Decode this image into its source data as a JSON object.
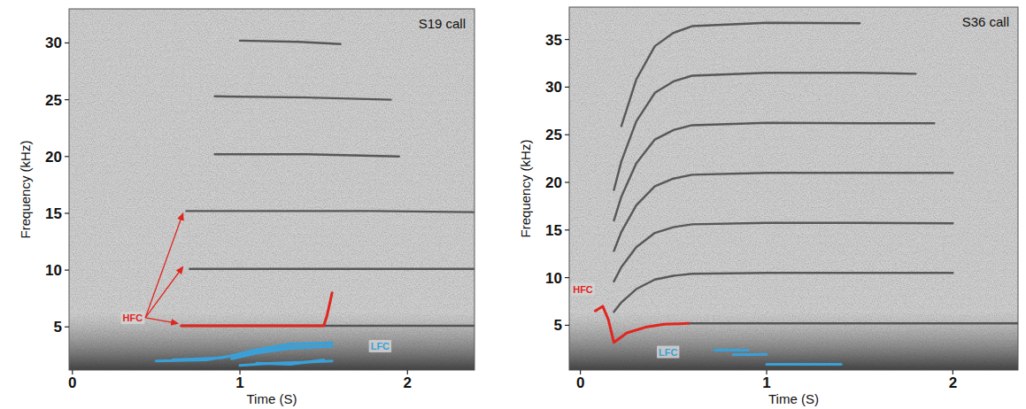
{
  "chart_data": [
    {
      "type": "line",
      "title": "S19 call",
      "x_label": "Time (S)",
      "y_label": "Frequency (kHz)",
      "xlim": [
        -0.02,
        2.4
      ],
      "ylim": [
        1.2,
        33
      ],
      "xticks": [
        0,
        1,
        2
      ],
      "yticks": [
        5,
        10,
        15,
        20,
        25,
        30
      ],
      "grid": false,
      "series": [
        {
          "color": "#3c3c3c",
          "x": [
            0.65,
            1.2,
            1.8,
            2.4
          ],
          "values": [
            5.1,
            5.1,
            5.1,
            5.1
          ]
        },
        {
          "color": "#3c3c3c",
          "x": [
            0.7,
            1.2,
            1.8,
            2.4
          ],
          "values": [
            10.1,
            10.1,
            10.1,
            10.1
          ]
        },
        {
          "color": "#3c3c3c",
          "x": [
            0.68,
            1.2,
            1.8,
            2.4
          ],
          "values": [
            15.2,
            15.2,
            15.2,
            15.1
          ]
        },
        {
          "color": "#3c3c3c",
          "x": [
            0.85,
            1.4,
            1.95
          ],
          "values": [
            20.2,
            20.2,
            20.0
          ]
        },
        {
          "color": "#3c3c3c",
          "x": [
            0.85,
            1.4,
            1.9
          ],
          "values": [
            25.3,
            25.2,
            25.0
          ]
        },
        {
          "color": "#3c3c3c",
          "x": [
            1.0,
            1.35,
            1.6
          ],
          "values": [
            30.2,
            30.1,
            29.9
          ]
        },
        {
          "color": "#e0261f",
          "x": [
            0.65,
            1.0,
            1.5,
            1.52,
            1.55
          ],
          "values": [
            5.1,
            5.1,
            5.1,
            6.0,
            8.0
          ]
        },
        {
          "color": "#3aa0d8",
          "x": [
            0.5,
            0.8,
            1.1,
            1.3,
            1.55
          ],
          "values": [
            2.0,
            2.1,
            2.8,
            3.2,
            3.3
          ]
        },
        {
          "color": "#3aa0d8",
          "x": [
            0.6,
            0.9,
            1.1,
            1.3,
            1.55
          ],
          "values": [
            2.1,
            2.3,
            3.0,
            3.5,
            3.6
          ]
        },
        {
          "color": "#3aa0d8",
          "x": [
            0.95,
            1.1,
            1.3,
            1.55
          ],
          "values": [
            2.2,
            2.7,
            3.1,
            3.3
          ]
        },
        {
          "color": "#3aa0d8",
          "x": [
            1.0,
            1.2,
            1.4,
            1.55
          ],
          "values": [
            1.6,
            1.8,
            1.9,
            2.0
          ]
        },
        {
          "color": "#3aa0d8",
          "x": [
            1.1,
            1.3,
            1.5
          ],
          "values": [
            1.8,
            1.7,
            2.1
          ]
        }
      ],
      "annotations": [
        {
          "text": "HFC",
          "color": "#e0261f",
          "x": 0.3,
          "y": 5.8,
          "points": [
            [
              0.66,
              15.0
            ],
            [
              0.66,
              10.3
            ],
            [
              0.63,
              5.3
            ]
          ]
        },
        {
          "text": "LFC",
          "color": "#3aa0d8",
          "x": 1.78,
          "y": 3.3
        }
      ]
    },
    {
      "type": "line",
      "title": "S36 call",
      "x_label": "Time (S)",
      "y_label": "Frequency (kHz)",
      "xlim": [
        -0.06,
        2.35
      ],
      "ylim": [
        0.3,
        38.4
      ],
      "xticks": [
        0,
        1,
        2
      ],
      "yticks": [
        5,
        10,
        15,
        20,
        25,
        30,
        35
      ],
      "grid": false,
      "series": [
        {
          "color": "#3c3c3c",
          "x": [
            0.58,
            1.2,
            1.8,
            2.35
          ],
          "values": [
            5.2,
            5.2,
            5.2,
            5.2
          ]
        },
        {
          "color": "#3c3c3c",
          "x": [
            0.18,
            0.22,
            0.3,
            0.4,
            0.5,
            0.6,
            1.0,
            1.5,
            2.0
          ],
          "values": [
            6.4,
            7.4,
            8.8,
            9.8,
            10.2,
            10.4,
            10.5,
            10.5,
            10.5
          ]
        },
        {
          "color": "#3c3c3c",
          "x": [
            0.18,
            0.22,
            0.3,
            0.4,
            0.5,
            0.6,
            1.0,
            1.5,
            2.0
          ],
          "values": [
            9.6,
            11.1,
            13.2,
            14.7,
            15.3,
            15.6,
            15.75,
            15.75,
            15.7
          ]
        },
        {
          "color": "#3c3c3c",
          "x": [
            0.18,
            0.22,
            0.3,
            0.4,
            0.5,
            0.6,
            1.0,
            1.5,
            2.0
          ],
          "values": [
            12.8,
            14.8,
            17.6,
            19.6,
            20.4,
            20.8,
            21.0,
            21.0,
            21.0
          ]
        },
        {
          "color": "#3c3c3c",
          "x": [
            0.18,
            0.22,
            0.3,
            0.4,
            0.5,
            0.6,
            1.0,
            1.5,
            1.9
          ],
          "values": [
            16.0,
            18.5,
            22.0,
            24.5,
            25.5,
            26.0,
            26.25,
            26.2,
            26.2
          ]
        },
        {
          "color": "#3c3c3c",
          "x": [
            0.18,
            0.22,
            0.3,
            0.4,
            0.5,
            0.6,
            1.0,
            1.5,
            1.8
          ],
          "values": [
            19.2,
            22.2,
            26.4,
            29.4,
            30.6,
            31.2,
            31.5,
            31.5,
            31.4
          ]
        },
        {
          "color": "#3c3c3c",
          "x": [
            0.22,
            0.3,
            0.4,
            0.5,
            0.6,
            1.0,
            1.5
          ],
          "values": [
            25.9,
            30.8,
            34.3,
            35.7,
            36.4,
            36.75,
            36.7
          ]
        },
        {
          "color": "#e0261f",
          "x": [
            0.08,
            0.12,
            0.15,
            0.18,
            0.25,
            0.35,
            0.45,
            0.58
          ],
          "values": [
            6.5,
            7.0,
            5.6,
            3.2,
            4.2,
            4.8,
            5.1,
            5.2
          ]
        },
        {
          "color": "#3aa0d8",
          "x": [
            0.72,
            0.9
          ],
          "values": [
            2.4,
            2.4
          ]
        },
        {
          "color": "#3aa0d8",
          "x": [
            0.82,
            1.0
          ],
          "values": [
            1.9,
            1.95
          ]
        },
        {
          "color": "#3aa0d8",
          "x": [
            1.0,
            1.4
          ],
          "values": [
            0.9,
            0.9
          ]
        }
      ],
      "annotations": [
        {
          "text": "HFC",
          "color": "#e0261f",
          "x": -0.04,
          "y": 8.8
        },
        {
          "text": "LFC",
          "color": "#3aa0d8",
          "x": 0.42,
          "y": 2.2
        }
      ]
    }
  ]
}
